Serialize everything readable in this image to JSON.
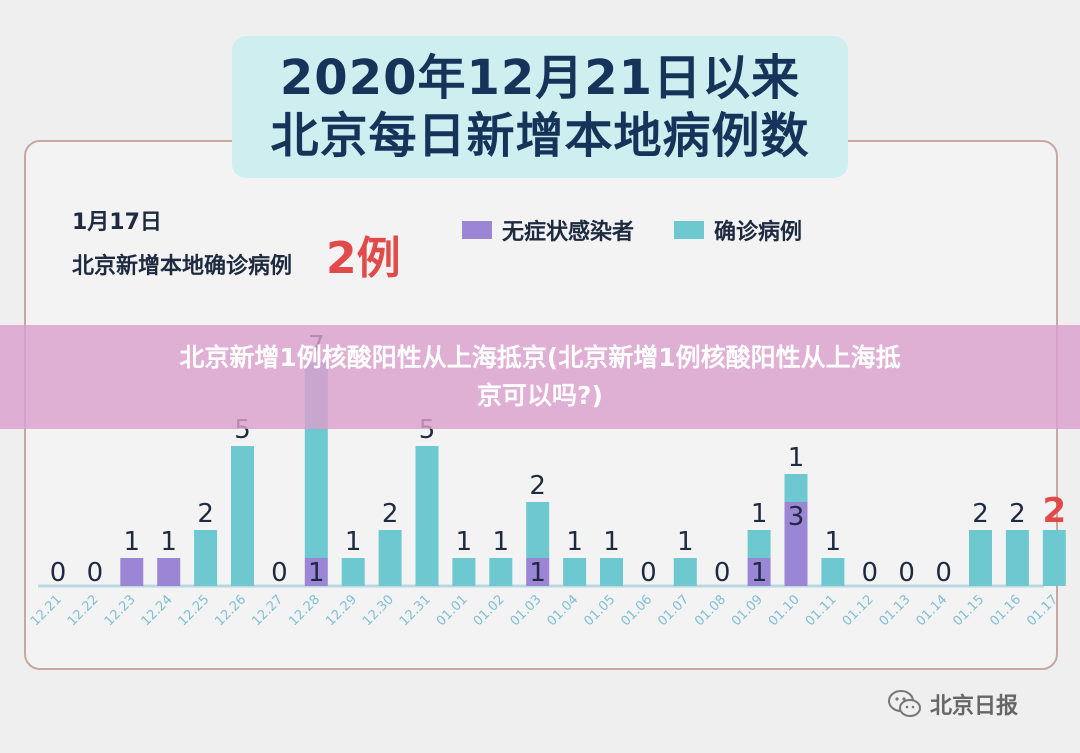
{
  "title": {
    "line1": "2020年12月21日以来",
    "line2": "北京每日新增本地病例数"
  },
  "headline": {
    "date": "1月17日",
    "label": "北京新增本地确诊病例",
    "value": "2例"
  },
  "overlay": {
    "line1": "北京新增1例核酸阳性从上海抵京(北京新增1例核酸阳性从上海抵",
    "line2": "京可以吗?)"
  },
  "watermark": {
    "text": "北京日报",
    "icon": "wechat-icon"
  },
  "colors": {
    "confirmed": "#6ec8d0",
    "asymptomatic": "#9b86d6",
    "highlight": "#e24a4a",
    "axis_label": "#7fbfd6"
  },
  "chart_data": {
    "type": "bar",
    "stacked": true,
    "categories": [
      "12.21",
      "12.22",
      "12.23",
      "12.24",
      "12.25",
      "12.26",
      "12.27",
      "12.28",
      "12.29",
      "12.30",
      "12.31",
      "01.01",
      "01.02",
      "01.03",
      "01.04",
      "01.05",
      "01.06",
      "01.07",
      "01.08",
      "01.09",
      "01.10",
      "01.11",
      "01.12",
      "01.13",
      "01.14",
      "01.15",
      "01.16",
      "01.17"
    ],
    "series": [
      {
        "name": "无症状感染者",
        "values": [
          0,
          0,
          1,
          1,
          0,
          0,
          0,
          1,
          0,
          0,
          0,
          0,
          0,
          1,
          0,
          0,
          0,
          0,
          0,
          1,
          3,
          0,
          0,
          0,
          0,
          0,
          0,
          0
        ]
      },
      {
        "name": "确诊病例",
        "values": [
          0,
          0,
          0,
          0,
          2,
          5,
          0,
          7,
          1,
          2,
          5,
          1,
          1,
          2,
          1,
          1,
          0,
          1,
          0,
          1,
          1,
          1,
          0,
          0,
          0,
          2,
          2,
          2
        ]
      }
    ],
    "legend": "top",
    "grid": false
  }
}
